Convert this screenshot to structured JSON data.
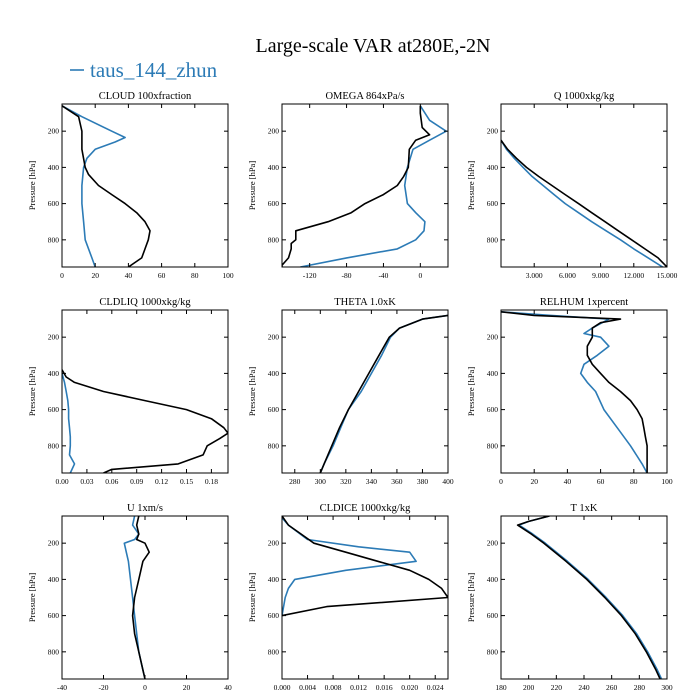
{
  "title": "Large-scale VAR at280E,-2N",
  "legend": {
    "label": "taus_144_zhun",
    "color": "#2c7bb6"
  },
  "colors": {
    "series_1": "#2c7bb6",
    "series_2": "#000000"
  },
  "ylabel": "Pressure [hPa]",
  "chart_data": [
    {
      "type": "line",
      "title": "CLOUD  100xfraction",
      "xlim": [
        0,
        100
      ],
      "ylim": [
        50,
        950
      ],
      "xticks": [
        0,
        20,
        40,
        60,
        80,
        100
      ],
      "xtick_labels": [
        "0",
        "20",
        "40",
        "60",
        "80",
        "100"
      ],
      "yticks": [
        200,
        400,
        600,
        800
      ],
      "ytick_labels": [
        "200",
        "400",
        "600",
        "800"
      ],
      "series": [
        {
          "name": "taus_144_zhun",
          "color": "#2c7bb6",
          "y": [
            60,
            120,
            200,
            235,
            260,
            300,
            350,
            400,
            500,
            600,
            700,
            800,
            900,
            950
          ],
          "x": [
            0,
            12,
            30,
            38,
            32,
            20,
            15,
            13,
            12,
            12,
            13,
            14,
            18,
            20
          ]
        },
        {
          "name": "",
          "color": "#000000",
          "y": [
            60,
            120,
            200,
            300,
            400,
            440,
            500,
            550,
            600,
            650,
            700,
            750,
            800,
            850,
            900,
            950
          ],
          "x": [
            0,
            10,
            12,
            12,
            14,
            16,
            22,
            30,
            38,
            45,
            50,
            53,
            52,
            50,
            48,
            40
          ]
        }
      ]
    },
    {
      "type": "line",
      "title": "OMEGA  864xPa/s",
      "xlim": [
        -150,
        30
      ],
      "ylim": [
        50,
        950
      ],
      "xticks": [
        -120,
        -80,
        -40,
        0
      ],
      "xtick_labels": [
        "-120",
        "-80",
        "-40",
        "0"
      ],
      "yticks": [
        200,
        400,
        600,
        800
      ],
      "ytick_labels": [
        "200",
        "400",
        "600",
        "800"
      ],
      "series": [
        {
          "name": "taus_144_zhun",
          "color": "#2c7bb6",
          "y": [
            60,
            140,
            200,
            250,
            300,
            400,
            500,
            600,
            650,
            700,
            750,
            800,
            850,
            900,
            950
          ],
          "x": [
            0,
            10,
            28,
            10,
            -8,
            -14,
            -17,
            -14,
            -5,
            5,
            4,
            -5,
            -25,
            -80,
            -130
          ]
        },
        {
          "name": "",
          "color": "#000000",
          "y": [
            60,
            100,
            180,
            220,
            250,
            300,
            400,
            450,
            500,
            550,
            600,
            650,
            700,
            750,
            800,
            820,
            850,
            900,
            940,
            950
          ],
          "x": [
            0,
            0,
            2,
            10,
            -5,
            -12,
            -13,
            -18,
            -25,
            -40,
            -60,
            -75,
            -100,
            -135,
            -135,
            -140,
            -140,
            -143,
            -150,
            -150
          ]
        }
      ]
    },
    {
      "type": "line",
      "title": "Q  1000xkg/kg",
      "xlim": [
        0,
        15
      ],
      "ylim": [
        50,
        950
      ],
      "xticks": [
        3,
        6,
        9,
        12,
        15
      ],
      "xtick_labels": [
        "3.000",
        "6.000",
        "9.000",
        "12.000",
        "15.000"
      ],
      "yticks": [
        200,
        400,
        600,
        800
      ],
      "ytick_labels": [
        "200",
        "400",
        "600",
        "800"
      ],
      "series": [
        {
          "name": "taus_144_zhun",
          "color": "#2c7bb6",
          "y": [
            250,
            300,
            350,
            400,
            450,
            500,
            550,
            600,
            650,
            700,
            750,
            800,
            850,
            900,
            950
          ],
          "x": [
            0,
            0.5,
            1.2,
            2.0,
            2.8,
            3.8,
            4.8,
            5.8,
            7.0,
            8.2,
            9.5,
            10.8,
            12.0,
            13.3,
            14.6
          ]
        },
        {
          "name": "",
          "color": "#000000",
          "y": [
            250,
            300,
            350,
            400,
            450,
            500,
            550,
            600,
            650,
            700,
            750,
            800,
            850,
            900,
            950
          ],
          "x": [
            0,
            0.6,
            1.4,
            2.3,
            3.4,
            4.6,
            5.8,
            7.0,
            8.2,
            9.4,
            10.6,
            11.8,
            13.0,
            14.2,
            15.0
          ]
        }
      ]
    },
    {
      "type": "line",
      "title": "CLDLIQ  1000xkg/kg",
      "xlim": [
        0,
        0.2
      ],
      "ylim": [
        50,
        950
      ],
      "xticks": [
        0,
        0.03,
        0.06,
        0.09,
        0.12,
        0.15,
        0.18
      ],
      "xtick_labels": [
        "0.00",
        "0.03",
        "0.06",
        "0.09",
        "0.12",
        "0.15",
        "0.18"
      ],
      "yticks": [
        200,
        400,
        600,
        800
      ],
      "ytick_labels": [
        "200",
        "400",
        "600",
        "800"
      ],
      "series": [
        {
          "name": "taus_144_zhun",
          "color": "#2c7bb6",
          "y": [
            400,
            450,
            500,
            550,
            600,
            650,
            700,
            750,
            800,
            850,
            900,
            950
          ],
          "x": [
            0,
            0.003,
            0.005,
            0.007,
            0.008,
            0.008,
            0.009,
            0.01,
            0.01,
            0.009,
            0.015,
            0.01
          ]
        },
        {
          "name": "",
          "color": "#000000",
          "y": [
            380,
            420,
            450,
            500,
            550,
            600,
            650,
            700,
            730,
            760,
            800,
            850,
            900,
            930,
            950
          ],
          "x": [
            0,
            0.005,
            0.015,
            0.05,
            0.1,
            0.15,
            0.18,
            0.195,
            0.2,
            0.19,
            0.175,
            0.17,
            0.14,
            0.06,
            0.05
          ]
        }
      ]
    },
    {
      "type": "line",
      "title": "THETA  1.0xK",
      "xlim": [
        270,
        400
      ],
      "ylim": [
        50,
        950
      ],
      "xticks": [
        280,
        300,
        320,
        340,
        360,
        380,
        400
      ],
      "xtick_labels": [
        "280",
        "300",
        "320",
        "340",
        "360",
        "380",
        "400"
      ],
      "yticks": [
        200,
        400,
        600,
        800
      ],
      "ytick_labels": [
        "200",
        "400",
        "600",
        "800"
      ],
      "series": [
        {
          "name": "taus_144_zhun",
          "color": "#2c7bb6",
          "y": [
            80,
            100,
            150,
            200,
            300,
            400,
            500,
            600,
            700,
            800,
            900,
            950
          ],
          "x": [
            400,
            380,
            362,
            355,
            348,
            340,
            332,
            322,
            316,
            310,
            303,
            300
          ]
        },
        {
          "name": "",
          "color": "#000000",
          "y": [
            80,
            100,
            150,
            200,
            300,
            400,
            500,
            600,
            700,
            800,
            900,
            950
          ],
          "x": [
            400,
            380,
            362,
            354,
            346,
            338,
            330,
            322,
            315,
            309,
            303,
            300
          ]
        }
      ]
    },
    {
      "type": "line",
      "title": "RELHUM  1xpercent",
      "xlim": [
        0,
        100
      ],
      "ylim": [
        50,
        950
      ],
      "xticks": [
        0,
        20,
        40,
        60,
        80,
        100
      ],
      "xtick_labels": [
        "0",
        "20",
        "40",
        "60",
        "80",
        "100"
      ],
      "yticks": [
        200,
        400,
        600,
        800
      ],
      "ytick_labels": [
        "200",
        "400",
        "600",
        "800"
      ],
      "series": [
        {
          "name": "taus_144_zhun",
          "color": "#2c7bb6",
          "y": [
            60,
            80,
            100,
            150,
            180,
            200,
            250,
            300,
            350,
            400,
            450,
            500,
            600,
            700,
            800,
            900,
            950
          ],
          "x": [
            0,
            30,
            65,
            55,
            50,
            60,
            65,
            58,
            50,
            48,
            52,
            57,
            62,
            70,
            78,
            85,
            88
          ]
        },
        {
          "name": "",
          "color": "#000000",
          "y": [
            60,
            80,
            100,
            120,
            150,
            200,
            250,
            300,
            350,
            400,
            450,
            500,
            550,
            600,
            650,
            700,
            750,
            800,
            850,
            900,
            950
          ],
          "x": [
            0,
            20,
            72,
            60,
            55,
            55,
            52,
            52,
            55,
            60,
            65,
            72,
            78,
            82,
            85,
            86,
            87,
            88,
            88,
            88,
            88
          ]
        }
      ]
    },
    {
      "type": "line",
      "title": "U  1xm/s",
      "xlim": [
        -40,
        40
      ],
      "ylim": [
        50,
        950
      ],
      "xticks": [
        -40,
        -20,
        0,
        20,
        40
      ],
      "xtick_labels": [
        "-40",
        "-20",
        "0",
        "20",
        "40"
      ],
      "yticks": [
        200,
        400,
        600,
        800
      ],
      "ytick_labels": [
        "200",
        "400",
        "600",
        "800"
      ],
      "series": [
        {
          "name": "taus_144_zhun",
          "color": "#2c7bb6",
          "y": [
            50,
            100,
            150,
            180,
            200,
            250,
            300,
            400,
            500,
            600,
            700,
            800,
            900,
            950
          ],
          "x": [
            -5,
            -6,
            -3,
            -5,
            -10,
            -9,
            -8,
            -7,
            -6,
            -5,
            -4,
            -3,
            -1,
            0
          ]
        },
        {
          "name": "",
          "color": "#000000",
          "y": [
            50,
            100,
            150,
            180,
            200,
            250,
            300,
            400,
            500,
            600,
            700,
            800,
            900,
            950
          ],
          "x": [
            -3,
            -4,
            -3,
            -4,
            0,
            2,
            -1,
            -3,
            -5,
            -6,
            -5,
            -3,
            -1,
            0
          ]
        }
      ]
    },
    {
      "type": "line",
      "title": "CLDICE  1000xkg/kg",
      "xlim": [
        0,
        0.026
      ],
      "ylim": [
        50,
        950
      ],
      "xticks": [
        0,
        0.004,
        0.008,
        0.012,
        0.016,
        0.02,
        0.024
      ],
      "xtick_labels": [
        "0.000",
        "0.004",
        "0.008",
        "0.012",
        "0.016",
        "0.020",
        "0.024"
      ],
      "yticks": [
        200,
        400,
        600,
        800
      ],
      "ytick_labels": [
        "200",
        "400",
        "600",
        "800"
      ],
      "series": [
        {
          "name": "taus_144_zhun",
          "color": "#2c7bb6",
          "y": [
            60,
            100,
            180,
            220,
            250,
            300,
            350,
            400,
            450,
            500,
            600
          ],
          "x": [
            0,
            0.001,
            0.004,
            0.012,
            0.02,
            0.021,
            0.01,
            0.002,
            0.001,
            0.0005,
            0
          ]
        },
        {
          "name": "",
          "color": "#000000",
          "y": [
            50,
            100,
            150,
            200,
            250,
            300,
            350,
            400,
            450,
            500,
            550,
            600
          ],
          "x": [
            0,
            0.001,
            0.003,
            0.005,
            0.01,
            0.015,
            0.02,
            0.023,
            0.025,
            0.026,
            0.007,
            0
          ]
        }
      ]
    },
    {
      "type": "line",
      "title": "T  1xK",
      "xlim": [
        180,
        300
      ],
      "ylim": [
        50,
        950
      ],
      "xticks": [
        180,
        200,
        220,
        240,
        260,
        280,
        300
      ],
      "xtick_labels": [
        "180",
        "200",
        "220",
        "240",
        "260",
        "280",
        "300"
      ],
      "yticks": [
        200,
        400,
        600,
        800
      ],
      "ytick_labels": [
        "200",
        "400",
        "600",
        "800"
      ],
      "series": [
        {
          "name": "taus_144_zhun",
          "color": "#2c7bb6",
          "y": [
            50,
            80,
            100,
            150,
            200,
            300,
            400,
            500,
            600,
            700,
            800,
            900,
            950
          ],
          "x": [
            215,
            200,
            193,
            203,
            212,
            228,
            243,
            256,
            268,
            278,
            286,
            293,
            296
          ]
        },
        {
          "name": "",
          "color": "#000000",
          "y": [
            50,
            80,
            100,
            150,
            200,
            300,
            400,
            500,
            600,
            700,
            800,
            900,
            950
          ],
          "x": [
            215,
            200,
            192,
            202,
            211,
            227,
            242,
            255,
            267,
            277,
            285,
            292,
            295
          ]
        }
      ]
    }
  ]
}
